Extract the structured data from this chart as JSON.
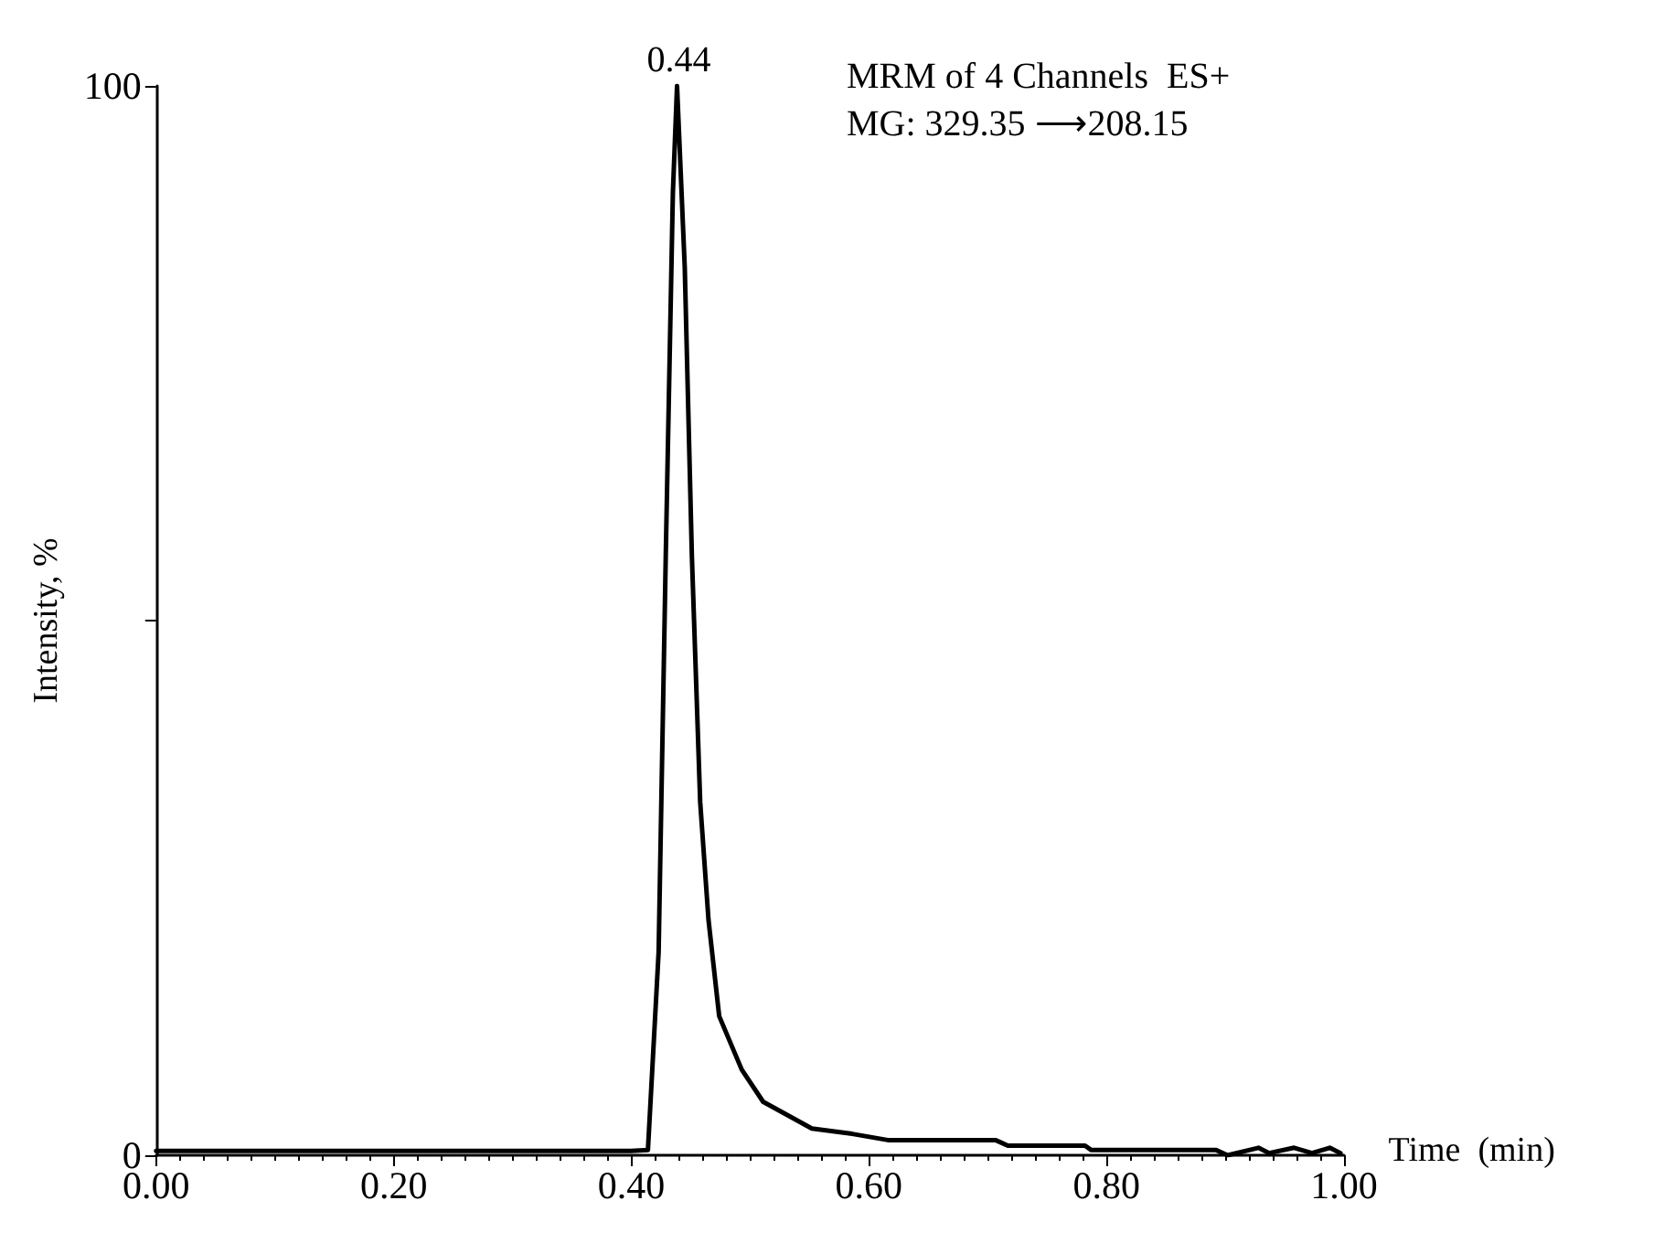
{
  "chart_data": {
    "type": "line",
    "xlabel": "Time  (min)",
    "ylabel": "Intensity, %",
    "x": [
      0,
      0.1,
      0.2,
      0.3,
      0.4,
      0.414,
      0.423,
      0.429,
      0.435,
      0.4385,
      0.445,
      0.451,
      0.458,
      0.465,
      0.474,
      0.493,
      0.511,
      0.552,
      0.586,
      0.617,
      0.707,
      0.717,
      0.782,
      0.787,
      0.892,
      0.902,
      0.928,
      0.937,
      0.958,
      0.973,
      0.988,
      0.997
    ],
    "series": [
      {
        "color": "#000000",
        "values": [
          0.4,
          0.4,
          0.4,
          0.4,
          0.4,
          0.5,
          19,
          56,
          90,
          100,
          83,
          56,
          33,
          22,
          13,
          8,
          5,
          2.5,
          2,
          1.4,
          1.4,
          0.9,
          0.9,
          0.5,
          0.5,
          0,
          0.7,
          0.2,
          0.7,
          0.2,
          0.7,
          0.2
        ]
      }
    ],
    "xlim": [
      0,
      1
    ],
    "ylim": [
      0,
      100
    ],
    "xticks": [
      {
        "value": 0,
        "label": "0.00"
      },
      {
        "value": 0.2,
        "label": "0.20"
      },
      {
        "value": 0.4,
        "label": "0.40"
      },
      {
        "value": 0.6,
        "label": "0.60"
      },
      {
        "value": 0.8,
        "label": "0.80"
      },
      {
        "value": 1,
        "label": "1.00"
      }
    ],
    "yticks": [
      0,
      {
        "value": 50,
        "label": null
      },
      100
    ],
    "annotations": [
      {
        "text": "0.44",
        "x": 0.44,
        "y": 100
      },
      "MRM of 4 Channels  ES+",
      "MG: 329.35 ⟶208.15"
    ],
    "grid": false,
    "marker": "none",
    "line_style": "solid"
  }
}
